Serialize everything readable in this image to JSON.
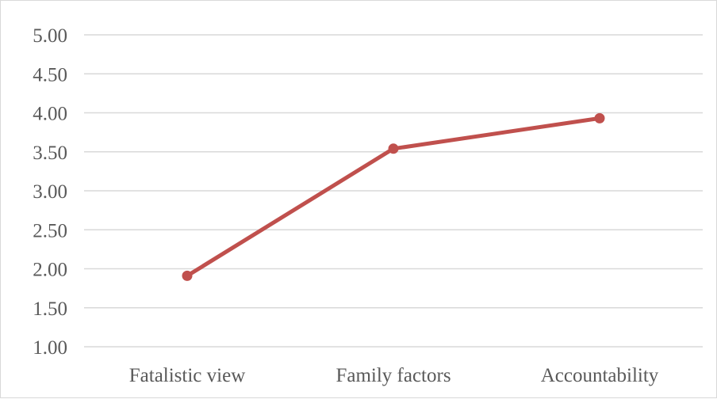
{
  "chart_data": {
    "type": "line",
    "title": "",
    "xlabel": "",
    "ylabel": "",
    "categories": [
      "Fatalistic view",
      "Family factors",
      "Accountability"
    ],
    "series": [
      {
        "values": [
          1.91,
          3.54,
          3.93
        ],
        "color": "#c0504d"
      }
    ],
    "ylim": [
      1.0,
      5.0
    ],
    "yticks": [
      "5.00",
      "4.50",
      "4.00",
      "3.50",
      "3.00",
      "2.50",
      "2.00",
      "1.50",
      "1.00"
    ],
    "grid": true,
    "gridline_color": "#d9d9d9",
    "legend": "none"
  }
}
